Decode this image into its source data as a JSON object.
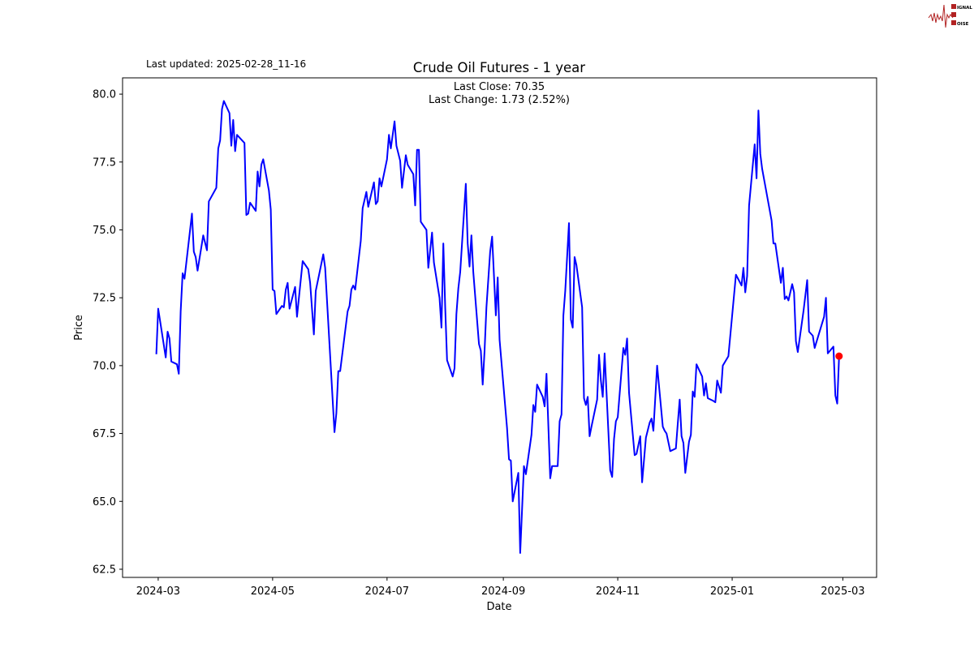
{
  "logo": {
    "text": "SIGNAL 2 NOISE",
    "color": "#b22222"
  },
  "chart_data": {
    "type": "line",
    "title": "Crude Oil Futures - 1 year",
    "subtitle_left": "Last updated: 2025-02-28_11-16",
    "annotations": [
      "Last Close: 70.35",
      "Last Change: 1.73 (2.52%)"
    ],
    "xlabel": "Date",
    "ylabel": "Price",
    "ylim": [
      62.2,
      80.6
    ],
    "xlim": [
      "2024-02-11",
      "2025-03-19"
    ],
    "grid": false,
    "line_color": "#0000ff",
    "marker_color": "#ff0000",
    "x_ticks": [
      "2024-03",
      "2024-05",
      "2024-07",
      "2024-09",
      "2024-11",
      "2025-01",
      "2025-03"
    ],
    "y_ticks": [
      "62.5",
      "65.0",
      "67.5",
      "70.0",
      "72.5",
      "75.0",
      "77.5",
      "80.0"
    ],
    "last_point": {
      "date": "2025-02-27",
      "value": 70.35
    },
    "dates": [
      "2024-02-29",
      "2024-03-01",
      "2024-03-05",
      "2024-03-06",
      "2024-03-07",
      "2024-03-08",
      "2024-03-11",
      "2024-03-12",
      "2024-03-13",
      "2024-03-14",
      "2024-03-15",
      "2024-03-19",
      "2024-03-20",
      "2024-03-21",
      "2024-03-22",
      "2024-03-25",
      "2024-03-27",
      "2024-03-28",
      "2024-04-01",
      "2024-04-02",
      "2024-04-03",
      "2024-04-04",
      "2024-04-05",
      "2024-04-08",
      "2024-04-09",
      "2024-04-10",
      "2024-04-11",
      "2024-04-12",
      "2024-04-16",
      "2024-04-17",
      "2024-04-18",
      "2024-04-19",
      "2024-04-22",
      "2024-04-23",
      "2024-04-24",
      "2024-04-25",
      "2024-04-26",
      "2024-04-29",
      "2024-04-30",
      "2024-05-01",
      "2024-05-02",
      "2024-05-03",
      "2024-05-06",
      "2024-05-07",
      "2024-05-08",
      "2024-05-09",
      "2024-05-10",
      "2024-05-13",
      "2024-05-14",
      "2024-05-17",
      "2024-05-20",
      "2024-05-21",
      "2024-05-23",
      "2024-05-24",
      "2024-05-28",
      "2024-05-29",
      "2024-06-03",
      "2024-06-04",
      "2024-06-05",
      "2024-06-06",
      "2024-06-10",
      "2024-06-11",
      "2024-06-12",
      "2024-06-13",
      "2024-06-14",
      "2024-06-17",
      "2024-06-18",
      "2024-06-20",
      "2024-06-21",
      "2024-06-24",
      "2024-06-25",
      "2024-06-26",
      "2024-06-27",
      "2024-06-28",
      "2024-07-01",
      "2024-07-02",
      "2024-07-03",
      "2024-07-05",
      "2024-07-06",
      "2024-07-08",
      "2024-07-09",
      "2024-07-11",
      "2024-07-12",
      "2024-07-15",
      "2024-07-16",
      "2024-07-17",
      "2024-07-18",
      "2024-07-19",
      "2024-07-22",
      "2024-07-23",
      "2024-07-25",
      "2024-07-26",
      "2024-07-29",
      "2024-07-30",
      "2024-07-31",
      "2024-08-01",
      "2024-08-02",
      "2024-08-05",
      "2024-08-06",
      "2024-08-07",
      "2024-08-08",
      "2024-08-09",
      "2024-08-12",
      "2024-08-13",
      "2024-08-14",
      "2024-08-15",
      "2024-08-16",
      "2024-08-19",
      "2024-08-20",
      "2024-08-21",
      "2024-08-22",
      "2024-08-23",
      "2024-08-25",
      "2024-08-26",
      "2024-08-28",
      "2024-08-29",
      "2024-08-30",
      "2024-09-03",
      "2024-09-04",
      "2024-09-05",
      "2024-09-06",
      "2024-09-09",
      "2024-09-10",
      "2024-09-11",
      "2024-09-12",
      "2024-09-13",
      "2024-09-16",
      "2024-09-17",
      "2024-09-18",
      "2024-09-19",
      "2024-09-22",
      "2024-09-23",
      "2024-09-24",
      "2024-09-26",
      "2024-09-27",
      "2024-09-30",
      "2024-10-01",
      "2024-10-02",
      "2024-10-03",
      "2024-10-04",
      "2024-10-06",
      "2024-10-07",
      "2024-10-08",
      "2024-10-09",
      "2024-10-10",
      "2024-10-13",
      "2024-10-14",
      "2024-10-15",
      "2024-10-16",
      "2024-10-17",
      "2024-10-18",
      "2024-10-21",
      "2024-10-22",
      "2024-10-23",
      "2024-10-24",
      "2024-10-25",
      "2024-10-26",
      "2024-10-28",
      "2024-10-29",
      "2024-10-30",
      "2024-10-31",
      "2024-11-01",
      "2024-11-04",
      "2024-11-05",
      "2024-11-06",
      "2024-11-07",
      "2024-11-10",
      "2024-11-11",
      "2024-11-13",
      "2024-11-14",
      "2024-11-16",
      "2024-11-18",
      "2024-11-19",
      "2024-11-20",
      "2024-11-22",
      "2024-11-25",
      "2024-11-26",
      "2024-11-27",
      "2024-11-29",
      "2024-12-02",
      "2024-12-03",
      "2024-12-04",
      "2024-12-05",
      "2024-12-06",
      "2024-12-07",
      "2024-12-09",
      "2024-12-10",
      "2024-12-11",
      "2024-12-12",
      "2024-12-13",
      "2024-12-16",
      "2024-12-17",
      "2024-12-18",
      "2024-12-19",
      "2024-12-22",
      "2024-12-23",
      "2024-12-24",
      "2024-12-26",
      "2024-12-27",
      "2024-12-30",
      "2025-01-03",
      "2025-01-06",
      "2025-01-07",
      "2025-01-08",
      "2025-01-09",
      "2025-01-10",
      "2025-01-13",
      "2025-01-14",
      "2025-01-15",
      "2025-01-16",
      "2025-01-17",
      "2025-01-22",
      "2025-01-23",
      "2025-01-24",
      "2025-01-27",
      "2025-01-28",
      "2025-01-29",
      "2025-01-30",
      "2025-01-31",
      "2025-02-02",
      "2025-02-03",
      "2025-02-04",
      "2025-02-05",
      "2025-02-08",
      "2025-02-10",
      "2025-02-11",
      "2025-02-13",
      "2025-02-14",
      "2025-02-19",
      "2025-02-20",
      "2025-02-21",
      "2025-02-24",
      "2025-02-25",
      "2025-02-26",
      "2025-02-27"
    ],
    "values": [
      70.42,
      72.1,
      70.3,
      71.25,
      71.0,
      70.15,
      70.05,
      69.7,
      72.0,
      73.4,
      73.2,
      75.6,
      74.2,
      74.0,
      73.5,
      74.8,
      74.25,
      76.05,
      76.55,
      78.0,
      78.3,
      79.45,
      79.75,
      79.3,
      78.1,
      79.05,
      77.9,
      78.5,
      78.2,
      75.55,
      75.6,
      76.0,
      75.7,
      77.15,
      76.6,
      77.4,
      77.6,
      76.45,
      75.75,
      72.8,
      72.75,
      71.9,
      72.2,
      72.15,
      72.8,
      73.05,
      72.1,
      72.9,
      71.8,
      73.85,
      73.55,
      73.05,
      71.15,
      72.75,
      74.1,
      73.6,
      67.55,
      68.25,
      69.8,
      69.8,
      72.0,
      72.2,
      72.8,
      72.95,
      72.8,
      74.6,
      75.8,
      76.4,
      75.85,
      76.75,
      75.95,
      76.05,
      76.9,
      76.6,
      77.6,
      78.5,
      78.0,
      79.0,
      78.1,
      77.55,
      76.55,
      77.75,
      77.4,
      77.05,
      75.9,
      77.95,
      77.95,
      75.3,
      75.0,
      73.6,
      74.9,
      73.8,
      72.5,
      71.4,
      74.5,
      72.15,
      70.2,
      69.6,
      69.9,
      71.9,
      72.85,
      73.45,
      76.7,
      74.5,
      73.65,
      74.8,
      73.45,
      70.8,
      70.55,
      69.3,
      70.55,
      72.15,
      74.2,
      74.75,
      71.85,
      73.25,
      70.95,
      67.7,
      66.55,
      66.5,
      65.0,
      66.05,
      63.1,
      64.7,
      66.3,
      66.0,
      67.45,
      68.55,
      68.3,
      69.3,
      68.85,
      68.5,
      69.7,
      65.85,
      66.3,
      66.3,
      67.95,
      68.2,
      71.85,
      72.75,
      75.25,
      71.7,
      71.4,
      74.0,
      73.7,
      72.15,
      68.8,
      68.55,
      68.85,
      67.4,
      67.75,
      68.75,
      70.4,
      69.45,
      68.85,
      70.45,
      69.05,
      66.15,
      65.9,
      67.3,
      67.95,
      68.1,
      70.65,
      70.4,
      71.0,
      69.0,
      66.7,
      66.75,
      67.4,
      65.7,
      67.35,
      67.9,
      68.05,
      67.6,
      70.0,
      67.75,
      67.6,
      67.5,
      66.85,
      66.95,
      67.85,
      68.75,
      67.4,
      67.15,
      66.05,
      67.2,
      67.45,
      69.05,
      68.85,
      70.05,
      69.6,
      68.9,
      69.35,
      68.8,
      68.7,
      68.65,
      69.45,
      69.0,
      70.0,
      70.35,
      73.35,
      72.95,
      73.6,
      72.7,
      73.3,
      75.9,
      78.15,
      76.9,
      79.4,
      77.8,
      77.25,
      75.35,
      74.5,
      74.5,
      73.05,
      73.6,
      72.45,
      72.55,
      72.4,
      73.0,
      72.7,
      70.9,
      70.5,
      72.0,
      73.15,
      71.25,
      71.1,
      70.65,
      71.8,
      72.5,
      70.45,
      70.7,
      68.9,
      68.6,
      70.35
    ]
  }
}
